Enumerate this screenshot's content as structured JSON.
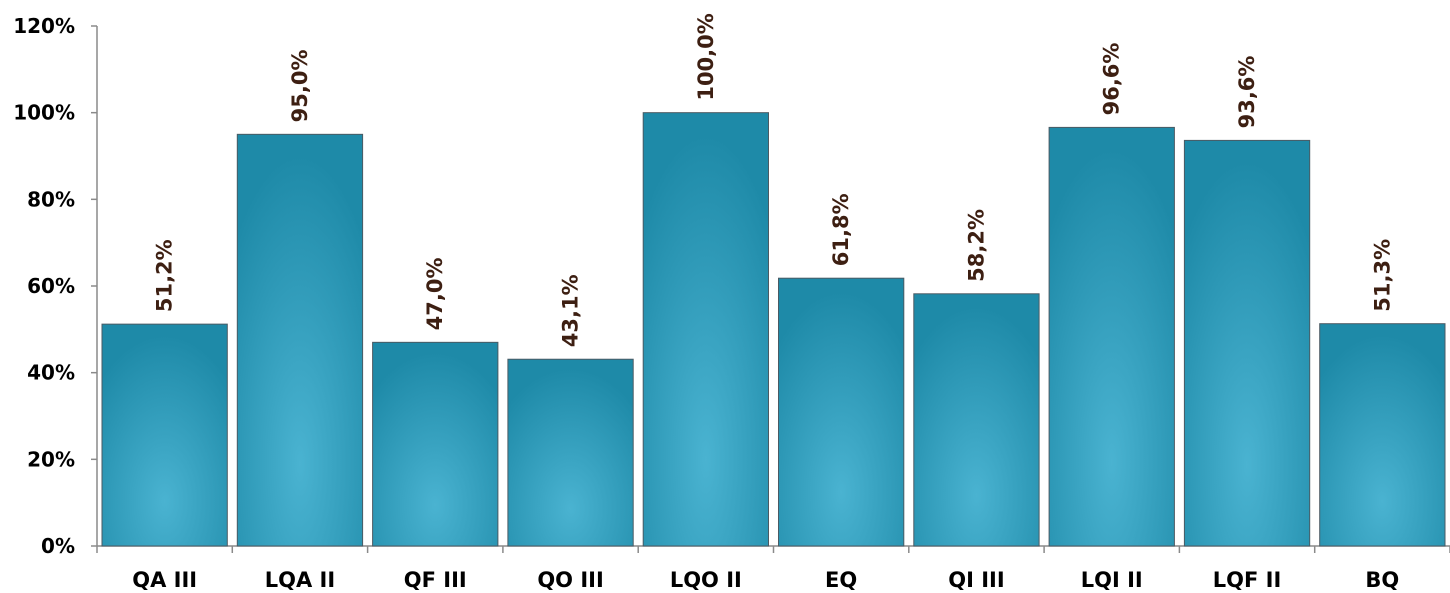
{
  "chart_data": {
    "type": "bar",
    "categories": [
      "QA III",
      "LQA II",
      "QF III",
      "QO III",
      "LQO II",
      "EQ",
      "QI III",
      "LQI II",
      "LQF II",
      "BQ"
    ],
    "values": [
      51.2,
      95.0,
      47.0,
      43.1,
      100.0,
      61.8,
      58.2,
      96.6,
      93.6,
      51.3
    ],
    "data_labels": [
      "51,2%",
      "95,0%",
      "47,0%",
      "43,1%",
      "100,0%",
      "61,8%",
      "58,2%",
      "96,6%",
      "93,6%",
      "51,3%"
    ],
    "y_ticks": [
      0,
      20,
      40,
      60,
      80,
      100,
      120
    ],
    "y_tick_labels": [
      "0%",
      "20%",
      "40%",
      "60%",
      "80%",
      "100%",
      "120%"
    ],
    "ylim": [
      0,
      120
    ],
    "grid": false,
    "title": "",
    "xlabel": "",
    "ylabel": "",
    "colors": {
      "bar_center": "#4ab3d1",
      "bar_edge": "#1e8aa8",
      "bar_border": "#4a5a63",
      "data_label": "#3d1f12",
      "axis": "#8a8a8a"
    }
  }
}
